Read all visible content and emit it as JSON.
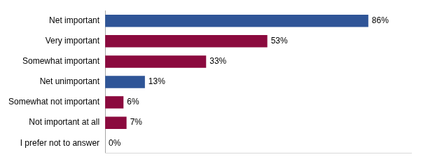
{
  "chart_data": {
    "type": "bar",
    "orientation": "horizontal",
    "categories": [
      "Net important",
      "Very important",
      "Somewhat important",
      "Net unimportant",
      "Somewhat not important",
      "Not important at all",
      "I prefer not to answer"
    ],
    "values": [
      86,
      53,
      33,
      13,
      6,
      7,
      0
    ],
    "value_labels": [
      "86%",
      "53%",
      "33%",
      "13%",
      "6%",
      "7%",
      "0%"
    ],
    "colors": [
      "#2f5597",
      "#8b0a3e",
      "#8b0a3e",
      "#2f5597",
      "#8b0a3e",
      "#8b0a3e",
      "#8b0a3e"
    ],
    "xlim": [
      0,
      100
    ],
    "data_labels": true,
    "tick_labels": "y",
    "grid": false
  }
}
